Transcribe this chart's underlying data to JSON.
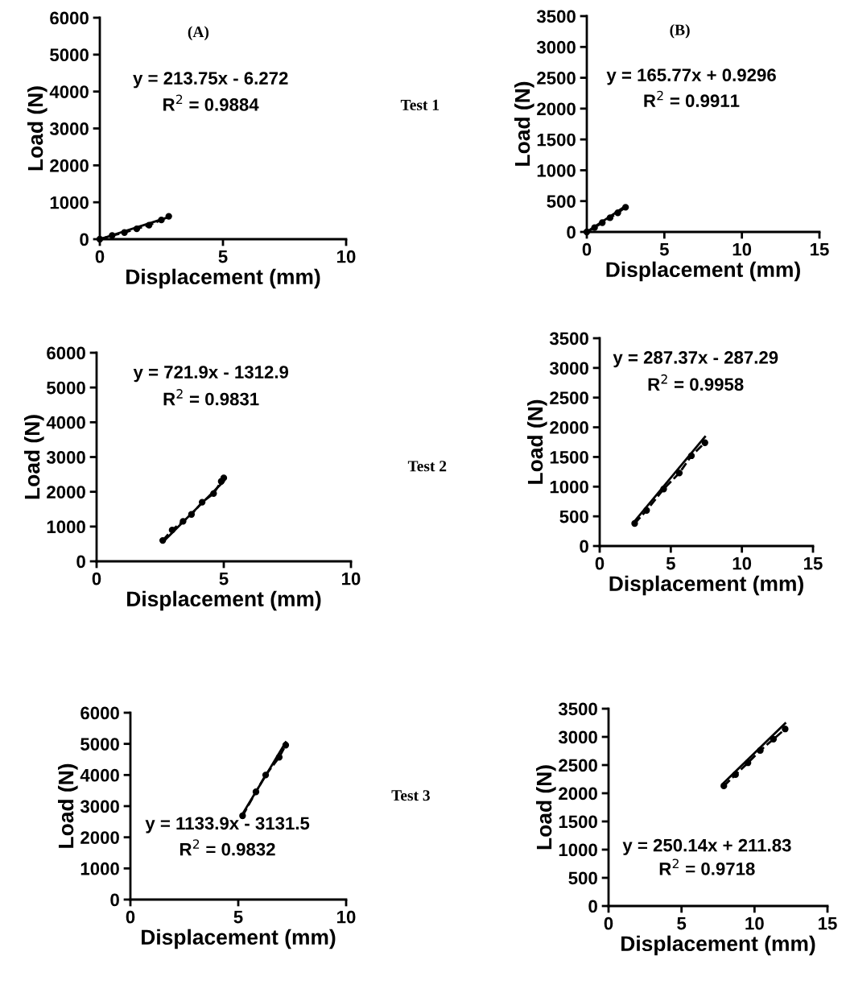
{
  "chart_data": [
    {
      "type": "line",
      "title": "(A)",
      "xlabel": "Displacement (mm)",
      "ylabel": "Load (N)",
      "xlim": [
        0,
        10
      ],
      "xticks": [
        0,
        5,
        10
      ],
      "ylim": [
        0,
        6000
      ],
      "yticks": [
        0,
        1000,
        2000,
        3000,
        4000,
        5000,
        6000
      ],
      "grid": false,
      "legend": false,
      "annotations": [
        "y = 213.75x - 6.272",
        "R$^{2}$ = 0.9884",
        "Test 1"
      ],
      "series": [
        {
          "color": "#000000",
          "marker": "circle",
          "line_style": "dashed",
          "x": [
            0,
            0.5,
            1,
            1.5,
            2,
            2.5,
            2.8
          ],
          "values": [
            0,
            100,
            180,
            280,
            380,
            520,
            620
          ]
        },
        {
          "color": "#000000",
          "marker": "none",
          "line_style": "solid",
          "x": [
            0,
            2.8
          ],
          "values": [
            0,
            600
          ]
        }
      ]
    },
    {
      "type": "line",
      "title": "(B)",
      "xlabel": "Displacement (mm)",
      "ylabel": "Load (N)",
      "xlim": [
        0,
        15
      ],
      "xticks": [
        0,
        5,
        10,
        15
      ],
      "ylim": [
        0,
        3500
      ],
      "yticks": [
        0,
        500,
        1000,
        1500,
        2000,
        2500,
        3000,
        3500
      ],
      "grid": false,
      "legend": false,
      "annotations": [
        "y = 165.77x + 0.9296",
        "R$^{2}$ = 0.9911"
      ],
      "series": [
        {
          "color": "#000000",
          "marker": "circle",
          "line_style": "dashed",
          "x": [
            0,
            0.5,
            1,
            1.5,
            2,
            2.5
          ],
          "values": [
            0,
            70,
            150,
            230,
            310,
            400
          ]
        },
        {
          "color": "#000000",
          "marker": "none",
          "line_style": "solid",
          "x": [
            0,
            2.5
          ],
          "values": [
            0,
            420
          ]
        }
      ]
    },
    {
      "type": "line",
      "xlabel": "Displacement (mm)",
      "ylabel": "Load (N)",
      "xlim": [
        0,
        10
      ],
      "xticks": [
        0,
        5,
        10
      ],
      "ylim": [
        0,
        6000
      ],
      "yticks": [
        0,
        1000,
        2000,
        3000,
        4000,
        5000,
        6000
      ],
      "grid": false,
      "legend": false,
      "annotations": [
        "y = 721.9x - 1312.9",
        "R$^{2}$ = 0.9831",
        "Test 2"
      ],
      "series": [
        {
          "color": "#000000",
          "marker": "circle",
          "line_style": "dashed",
          "x": [
            2.6,
            2.97,
            3.4,
            3.73,
            4.15,
            4.6,
            4.9,
            5.0
          ],
          "values": [
            600,
            900,
            1150,
            1350,
            1700,
            1950,
            2300,
            2400
          ]
        },
        {
          "color": "#000000",
          "marker": "none",
          "line_style": "solid",
          "x": [
            2.6,
            5.0
          ],
          "values": [
            550,
            2300
          ]
        }
      ]
    },
    {
      "type": "line",
      "xlabel": "Displacement (mm)",
      "ylabel": "Load (N)",
      "xlim": [
        0,
        15
      ],
      "xticks": [
        0,
        5,
        10,
        15
      ],
      "ylim": [
        0,
        3500
      ],
      "yticks": [
        0,
        500,
        1000,
        1500,
        2000,
        2500,
        3000,
        3500
      ],
      "grid": false,
      "legend": false,
      "annotations": [
        "y = 287.37x - 287.29",
        "R$^{2}$ = 0.9958"
      ],
      "series": [
        {
          "color": "#000000",
          "marker": "circle",
          "line_style": "dashed",
          "x": [
            2.46,
            3.3,
            4.5,
            5.6,
            6.45,
            7.4
          ],
          "values": [
            380,
            600,
            960,
            1230,
            1520,
            1740
          ]
        },
        {
          "color": "#000000",
          "marker": "none",
          "line_style": "solid",
          "x": [
            2.46,
            7.4
          ],
          "values": [
            420,
            1840
          ]
        }
      ]
    },
    {
      "type": "line",
      "xlabel": "Displacement (mm)",
      "ylabel": "Load (N)",
      "xlim": [
        0,
        10
      ],
      "xticks": [
        0,
        5,
        10
      ],
      "ylim": [
        0,
        6000
      ],
      "yticks": [
        0,
        1000,
        2000,
        3000,
        4000,
        5000,
        6000
      ],
      "grid": false,
      "legend": false,
      "annotations": [
        "y = 1133.9x - 3131.5",
        "R$^{2}$ = 0.9832",
        "Test 3"
      ],
      "series": [
        {
          "color": "#000000",
          "marker": "circle",
          "line_style": "dashed",
          "x": [
            5.2,
            5.82,
            6.27,
            6.9,
            7.2
          ],
          "values": [
            2690,
            3460,
            4000,
            4570,
            4960
          ]
        },
        {
          "color": "#000000",
          "marker": "none",
          "line_style": "solid",
          "x": [
            5.2,
            7.2
          ],
          "values": [
            2750,
            5050
          ]
        }
      ]
    },
    {
      "type": "line",
      "xlabel": "Displacement (mm)",
      "ylabel": "Load (N)",
      "xlim": [
        0,
        15
      ],
      "xticks": [
        0,
        5,
        10,
        15
      ],
      "ylim": [
        0,
        3500
      ],
      "yticks": [
        0,
        500,
        1000,
        1500,
        2000,
        2500,
        3000,
        3500
      ],
      "grid": false,
      "legend": false,
      "annotations": [
        "y = 250.14x + 211.83",
        "R$^{2}$ = 0.9718"
      ],
      "series": [
        {
          "color": "#000000",
          "marker": "circle",
          "line_style": "dashed",
          "x": [
            7.9,
            8.7,
            9.55,
            10.4,
            11.3,
            12.1
          ],
          "values": [
            2130,
            2330,
            2540,
            2760,
            2960,
            3140
          ]
        },
        {
          "color": "#000000",
          "marker": "none",
          "line_style": "solid",
          "x": [
            7.8,
            12.1
          ],
          "values": [
            2160,
            3240
          ]
        }
      ]
    }
  ]
}
